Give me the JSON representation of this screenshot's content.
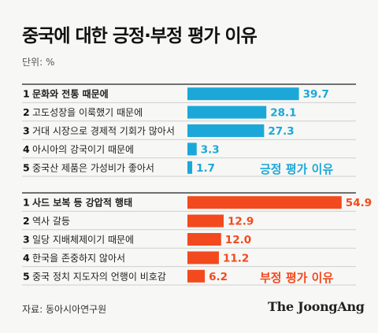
{
  "title": "중국에 대한 긍정·부정 평가 이유",
  "unit": "단위: %",
  "source": "자료: 동아시아연구원",
  "brand": "The JoongAng",
  "colors": {
    "positive": "#1ba8d9",
    "negative": "#f24a1e",
    "separator": "#444444",
    "row_line": "#cfcfcf"
  },
  "chart_data": [
    {
      "type": "bar",
      "orientation": "horizontal",
      "annotation": "긍정 평가 이유",
      "categories": [
        "문화와 전통 때문에",
        "고도성장을 이룩했기 때문에",
        "거대 시장으로 경제적 기회가 많아서",
        "아시아의 강국이기 때문에",
        "중국산 제품은 가성비가 좋아서"
      ],
      "ranks": [
        "1",
        "2",
        "3",
        "4",
        "5"
      ],
      "values": [
        39.7,
        28.1,
        27.3,
        3.3,
        1.7
      ],
      "value_labels": [
        "39.7",
        "28.1",
        "27.3",
        "3.3",
        "1.7"
      ],
      "xlim": [
        0,
        60
      ]
    },
    {
      "type": "bar",
      "orientation": "horizontal",
      "annotation": "부정 평가 이유",
      "categories": [
        "사드 보복 등 강압적 행태",
        "역사 갈등",
        "일당 지배체제이기 때문에",
        "한국을 존중하지 않아서",
        "중국 정치 지도자의 언행이 비호감"
      ],
      "ranks": [
        "1",
        "2",
        "3",
        "4",
        "5"
      ],
      "values": [
        54.9,
        12.9,
        12.0,
        11.2,
        6.2
      ],
      "value_labels": [
        "54.9",
        "12.9",
        "12.0",
        "11.2",
        "6.2"
      ],
      "xlim": [
        0,
        60
      ]
    }
  ]
}
